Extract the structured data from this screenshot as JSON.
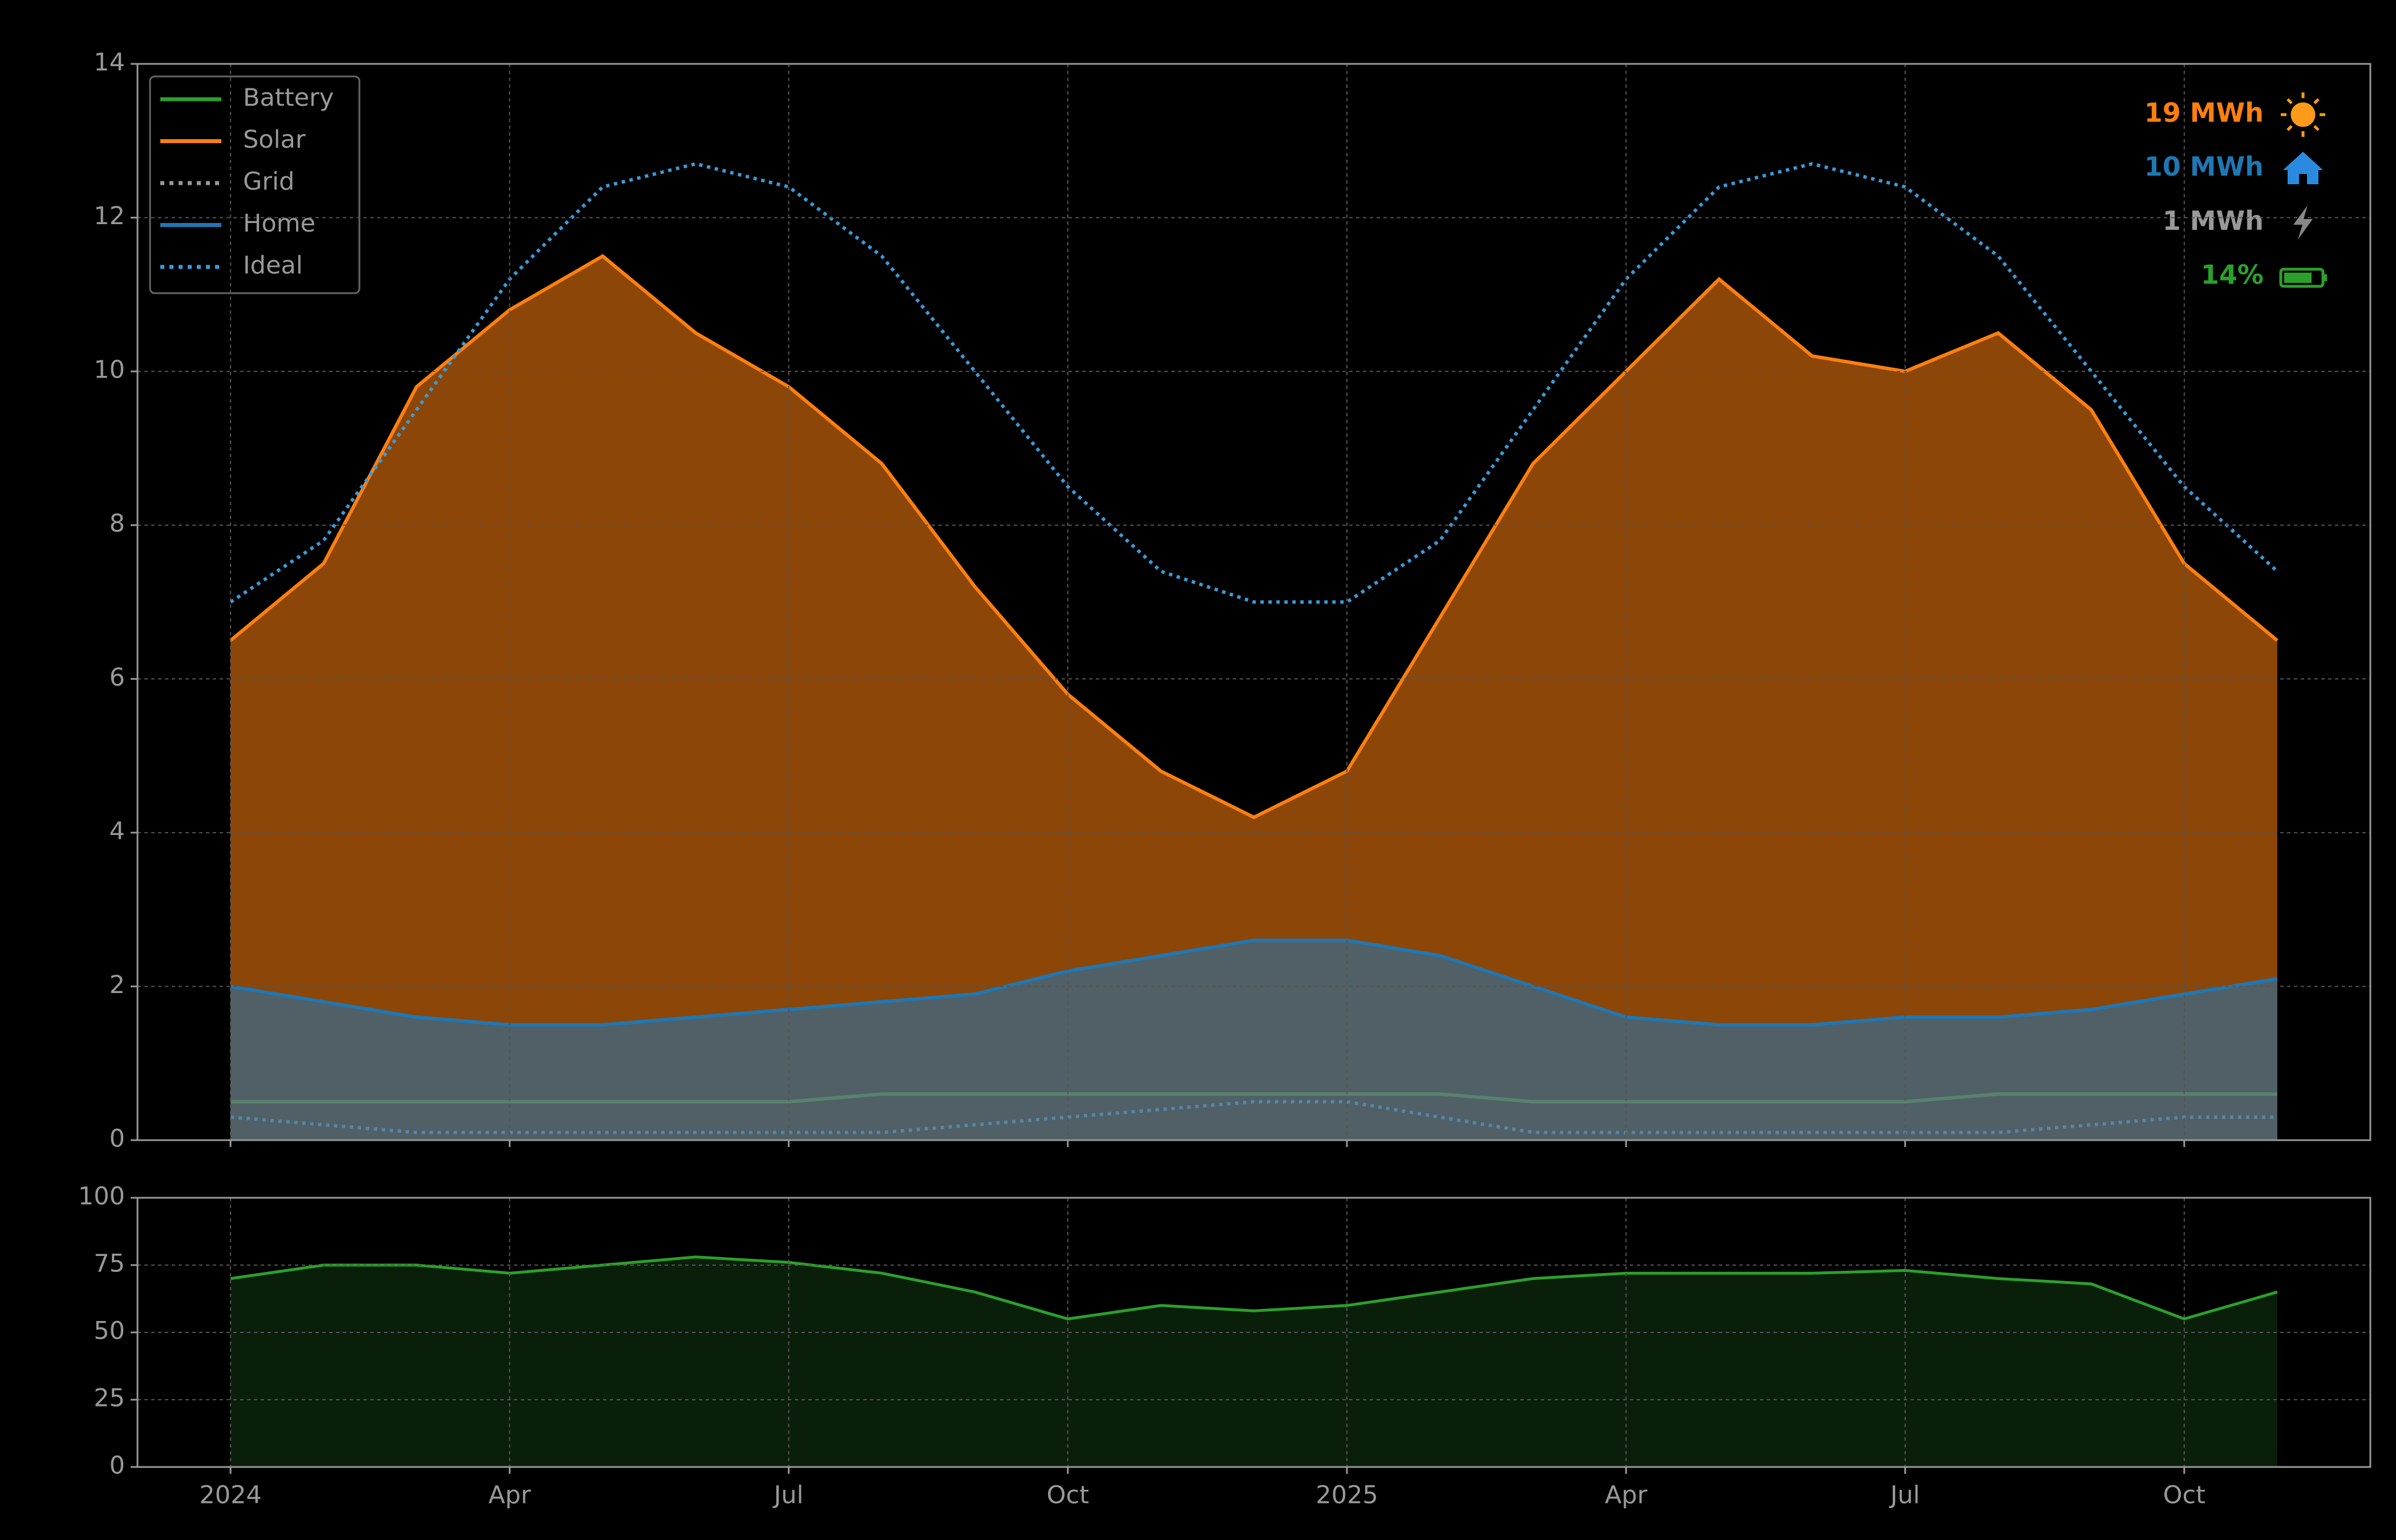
{
  "chart_data": [
    {
      "type": "line",
      "x": [
        "2024-01",
        "2024-02",
        "2024-03",
        "2024-04",
        "2024-05",
        "2024-06",
        "2024-07",
        "2024-08",
        "2024-09",
        "2024-10",
        "2024-11",
        "2024-12",
        "2025-01",
        "2025-02",
        "2025-03",
        "2025-04",
        "2025-05",
        "2025-06",
        "2025-07",
        "2025-08",
        "2025-09",
        "2025-10",
        "2025-11"
      ],
      "xlim": [
        "2023-12",
        "2025-12"
      ],
      "ylim": [
        0,
        14
      ],
      "yticks": [
        0,
        2,
        4,
        6,
        8,
        10,
        12,
        14
      ],
      "grid": true,
      "legend": "upper left",
      "series": [
        {
          "name": "Battery",
          "color": "#2ca02c",
          "style": "solid",
          "fill": false,
          "values": [
            0.5,
            0.5,
            0.5,
            0.5,
            0.5,
            0.5,
            0.5,
            0.6,
            0.6,
            0.6,
            0.6,
            0.6,
            0.6,
            0.6,
            0.5,
            0.5,
            0.5,
            0.5,
            0.5,
            0.6,
            0.6,
            0.6,
            0.6
          ]
        },
        {
          "name": "Solar",
          "color": "#ff7f0e",
          "style": "solid",
          "fill": true,
          "values": [
            6.5,
            7.5,
            9.8,
            10.8,
            11.5,
            10.5,
            9.8,
            8.8,
            7.2,
            5.8,
            4.8,
            4.2,
            4.8,
            6.8,
            8.8,
            10.0,
            11.2,
            10.2,
            10.0,
            10.5,
            9.5,
            7.5,
            6.5
          ]
        },
        {
          "name": "Grid",
          "color": "#999999",
          "style": "dotted",
          "fill": false,
          "values": [
            0.3,
            0.2,
            0.1,
            0.1,
            0.1,
            0.1,
            0.1,
            0.1,
            0.2,
            0.3,
            0.4,
            0.5,
            0.5,
            0.3,
            0.1,
            0.1,
            0.1,
            0.1,
            0.1,
            0.1,
            0.2,
            0.3,
            0.3
          ]
        },
        {
          "name": "Home",
          "color": "#1f77b4",
          "style": "solid",
          "fill": true,
          "values": [
            2.0,
            1.8,
            1.6,
            1.5,
            1.5,
            1.6,
            1.7,
            1.8,
            1.9,
            2.2,
            2.4,
            2.6,
            2.6,
            2.4,
            2.0,
            1.6,
            1.5,
            1.5,
            1.6,
            1.6,
            1.7,
            1.9,
            2.1
          ]
        },
        {
          "name": "Ideal",
          "color": "#3a9ad9",
          "style": "dotted",
          "fill": false,
          "values": [
            7.0,
            7.8,
            9.5,
            11.2,
            12.4,
            12.7,
            12.4,
            11.5,
            10.0,
            8.5,
            7.4,
            7.0,
            7.0,
            7.8,
            9.5,
            11.2,
            12.4,
            12.7,
            12.4,
            11.5,
            10.0,
            8.5,
            7.4
          ]
        }
      ],
      "stats": [
        {
          "label": "19 MWh",
          "color": "#ff7f0e"
        },
        {
          "label": "10 MWh",
          "color": "#1f77b4"
        },
        {
          "label": "1 MWh",
          "color": "#999999"
        },
        {
          "label": "14%",
          "color": "#2ca02c"
        }
      ]
    },
    {
      "type": "area",
      "x": [
        "2024-01",
        "2024-02",
        "2024-03",
        "2024-04",
        "2024-05",
        "2024-06",
        "2024-07",
        "2024-08",
        "2024-09",
        "2024-10",
        "2024-11",
        "2024-12",
        "2025-01",
        "2025-02",
        "2025-03",
        "2025-04",
        "2025-05",
        "2025-06",
        "2025-07",
        "2025-08",
        "2025-09",
        "2025-10",
        "2025-11"
      ],
      "xlim": [
        "2023-12",
        "2025-12"
      ],
      "xticks": [
        {
          "value": "2024-01",
          "label": "2024"
        },
        {
          "value": "2024-04",
          "label": "Apr"
        },
        {
          "value": "2024-07",
          "label": "Jul"
        },
        {
          "value": "2024-10",
          "label": "Oct"
        },
        {
          "value": "2025-01",
          "label": "2025"
        },
        {
          "value": "2025-04",
          "label": "Apr"
        },
        {
          "value": "2025-07",
          "label": "Jul"
        },
        {
          "value": "2025-10",
          "label": "Oct"
        }
      ],
      "ylim": [
        0,
        100
      ],
      "yticks": [
        0,
        25,
        50,
        75,
        100
      ],
      "grid": true,
      "color": "#2ca02c",
      "fill_color": "#0a1f0a",
      "values": [
        70,
        75,
        75,
        72,
        75,
        78,
        76,
        72,
        65,
        55,
        60,
        58,
        60,
        65,
        70,
        72,
        72,
        72,
        73,
        70,
        68,
        55,
        65
      ]
    }
  ]
}
